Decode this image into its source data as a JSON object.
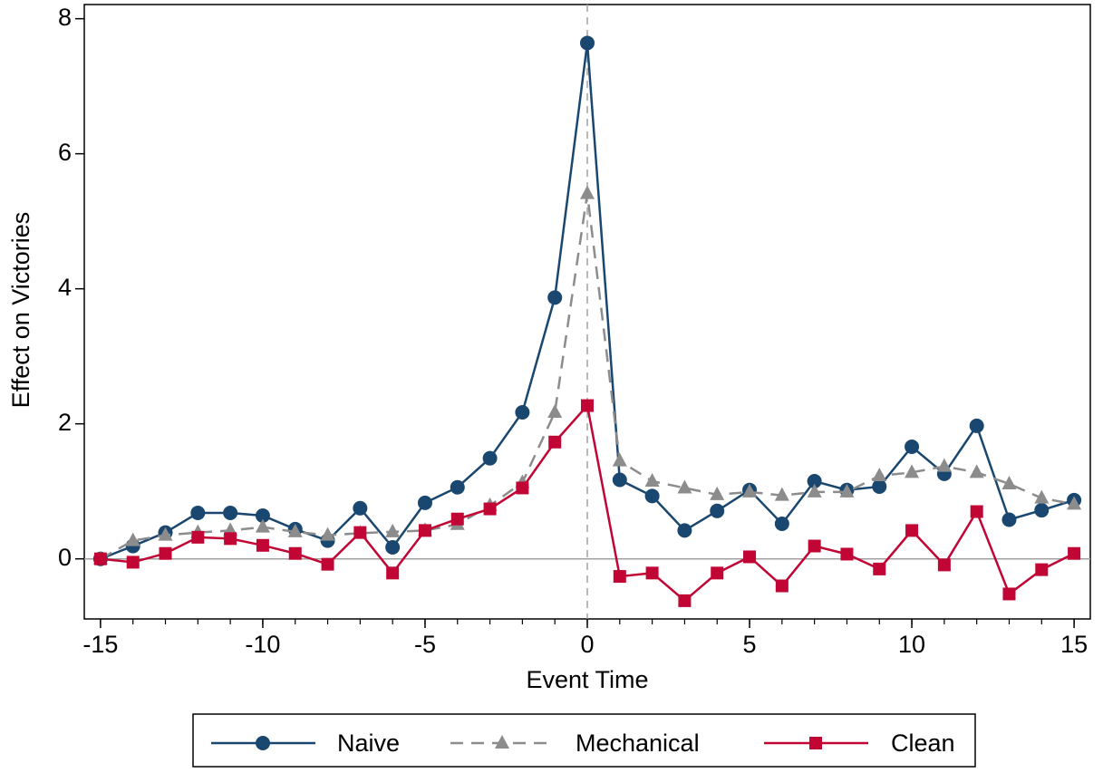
{
  "chart_data": {
    "type": "line",
    "x_label": "Event Time",
    "y_label": "Effect on Victories",
    "x": [
      -15,
      -14,
      -13,
      -12,
      -11,
      -10,
      -9,
      -8,
      -7,
      -6,
      -5,
      -4,
      -3,
      -2,
      -1,
      0,
      1,
      2,
      3,
      4,
      5,
      6,
      7,
      8,
      9,
      10,
      11,
      12,
      13,
      14,
      15
    ],
    "series": [
      {
        "name": "Naive",
        "color": "#1a476f",
        "marker": "circle",
        "dash": false,
        "values": [
          0,
          0.19,
          0.39,
          0.68,
          0.68,
          0.64,
          0.44,
          0.27,
          0.75,
          0.17,
          0.83,
          1.06,
          1.49,
          2.17,
          3.87,
          7.64,
          1.17,
          0.93,
          0.42,
          0.71,
          1.02,
          0.52,
          1.15,
          1.02,
          1.07,
          1.66,
          1.26,
          1.97,
          0.58,
          0.72,
          0.87
        ]
      },
      {
        "name": "Mechanical",
        "color": "#8c8c8c",
        "marker": "triangle",
        "dash": true,
        "values": [
          0,
          0.27,
          0.35,
          0.39,
          0.42,
          0.47,
          0.4,
          0.35,
          0.38,
          0.4,
          0.42,
          0.51,
          0.79,
          1.13,
          2.17,
          5.41,
          1.45,
          1.15,
          1.05,
          0.95,
          0.99,
          0.94,
          0.99,
          0.99,
          1.23,
          1.28,
          1.37,
          1.28,
          1.11,
          0.9,
          0.81
        ]
      },
      {
        "name": "Clean",
        "color": "#c10534",
        "marker": "square",
        "dash": false,
        "values": [
          0,
          -0.05,
          0.08,
          0.32,
          0.3,
          0.2,
          0.08,
          -0.08,
          0.39,
          -0.21,
          0.42,
          0.59,
          0.74,
          1.05,
          1.73,
          2.27,
          -0.26,
          -0.21,
          -0.62,
          -0.21,
          0.03,
          -0.4,
          0.19,
          0.07,
          -0.15,
          0.42,
          -0.09,
          0.7,
          -0.52,
          -0.16,
          0.08
        ]
      }
    ],
    "xlim": [
      -15.5,
      15.5
    ],
    "ylim": [
      -0.89,
      8.21
    ],
    "xticks": [
      -15,
      -10,
      -5,
      0,
      5,
      10,
      15
    ],
    "xminorticks": [
      -15,
      -14,
      -13,
      -12,
      -11,
      -10,
      -9,
      -8,
      -7,
      -6,
      -5,
      -4,
      -3,
      -2,
      -1,
      0,
      1,
      2,
      3,
      4,
      5,
      6,
      7,
      8,
      9,
      10,
      11,
      12,
      13,
      14,
      15
    ],
    "yticks": [
      0,
      2,
      4,
      6,
      8
    ],
    "hline": 0,
    "vline": 0,
    "legend": "bottom"
  }
}
